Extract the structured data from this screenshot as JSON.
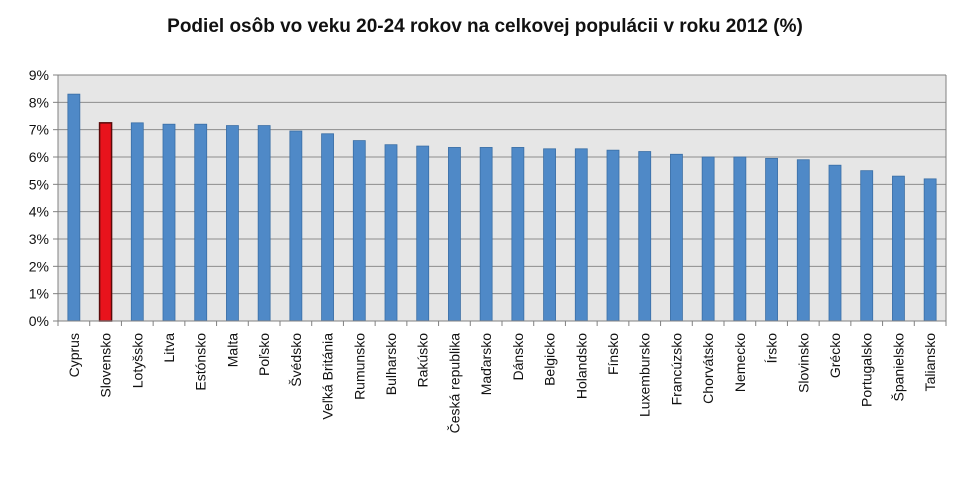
{
  "chart_data": {
    "type": "bar",
    "title": "Podiel osôb vo veku 20-24 rokov na celkovej populácii v roku 2012 (%)",
    "xlabel": "",
    "ylabel": "",
    "ylim": [
      0,
      9
    ],
    "yticks": [
      "0%",
      "1%",
      "2%",
      "3%",
      "4%",
      "5%",
      "6%",
      "7%",
      "8%",
      "9%"
    ],
    "grid": true,
    "legend": "none",
    "categories": [
      "Cyprus",
      "Slovensko",
      "Lotyšsko",
      "Litva",
      "Estónsko",
      "Malta",
      "Poľsko",
      "Švédsko",
      "Veľká Británia",
      "Rumunsko",
      "Bulharsko",
      "Rakúsko",
      "Česká republika",
      "Maďarsko",
      "Dánsko",
      "Belgicko",
      "Holandsko",
      "Fínsko",
      "Luxembursko",
      "Francúzsko",
      "Chorvátsko",
      "Nemecko",
      "Írsko",
      "Slovinsko",
      "Grécko",
      "Portugalsko",
      "Španielsko",
      "Taliansko"
    ],
    "values": [
      8.3,
      7.25,
      7.25,
      7.2,
      7.2,
      7.15,
      7.15,
      6.95,
      6.85,
      6.6,
      6.45,
      6.4,
      6.35,
      6.35,
      6.35,
      6.3,
      6.3,
      6.25,
      6.2,
      6.1,
      6.0,
      6.0,
      5.95,
      5.9,
      5.7,
      5.5,
      5.3,
      5.2
    ],
    "highlight_category": "Slovensko",
    "colors": {
      "bar": "#4F89C7",
      "bar_edge": "#3A6EA5",
      "highlight": "#E8131C",
      "highlight_edge": "#5A0A0A",
      "plot_bg": "#E6E6E6",
      "grid": "#8C8C8C",
      "axis": "#808080"
    }
  }
}
